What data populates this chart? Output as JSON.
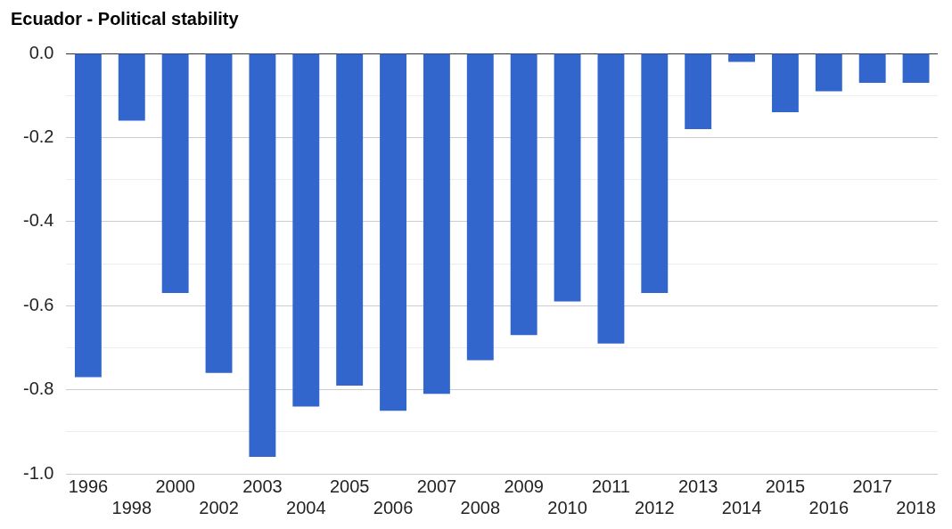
{
  "chart_data": {
    "type": "bar",
    "title": "Ecuador - Political stability",
    "categories": [
      "1996",
      "1998",
      "2000",
      "2002",
      "2003",
      "2004",
      "2005",
      "2006",
      "2007",
      "2008",
      "2009",
      "2010",
      "2011",
      "2012",
      "2013",
      "2014",
      "2015",
      "2016",
      "2017",
      "2018"
    ],
    "values": [
      -0.77,
      -0.16,
      -0.57,
      -0.76,
      -0.96,
      -0.84,
      -0.79,
      -0.85,
      -0.81,
      -0.73,
      -0.67,
      -0.59,
      -0.69,
      -0.57,
      -0.18,
      -0.02,
      -0.14,
      -0.09,
      -0.07,
      -0.07
    ],
    "color": "#3366cc",
    "ylim": [
      -1.0,
      0.0
    ],
    "yticks": [
      {
        "value": -1.0,
        "label": "-1.0"
      },
      {
        "value": -0.9,
        "label": null
      },
      {
        "value": -0.8,
        "label": "-0.8"
      },
      {
        "value": -0.7,
        "label": null
      },
      {
        "value": -0.6,
        "label": "-0.6"
      },
      {
        "value": -0.5,
        "label": null
      },
      {
        "value": -0.4,
        "label": "-0.4"
      },
      {
        "value": -0.3,
        "label": null
      },
      {
        "value": -0.2,
        "label": "-0.2"
      },
      {
        "value": -0.1,
        "label": null
      },
      {
        "value": 0.0,
        "label": "0.0"
      }
    ],
    "grid": "y"
  }
}
